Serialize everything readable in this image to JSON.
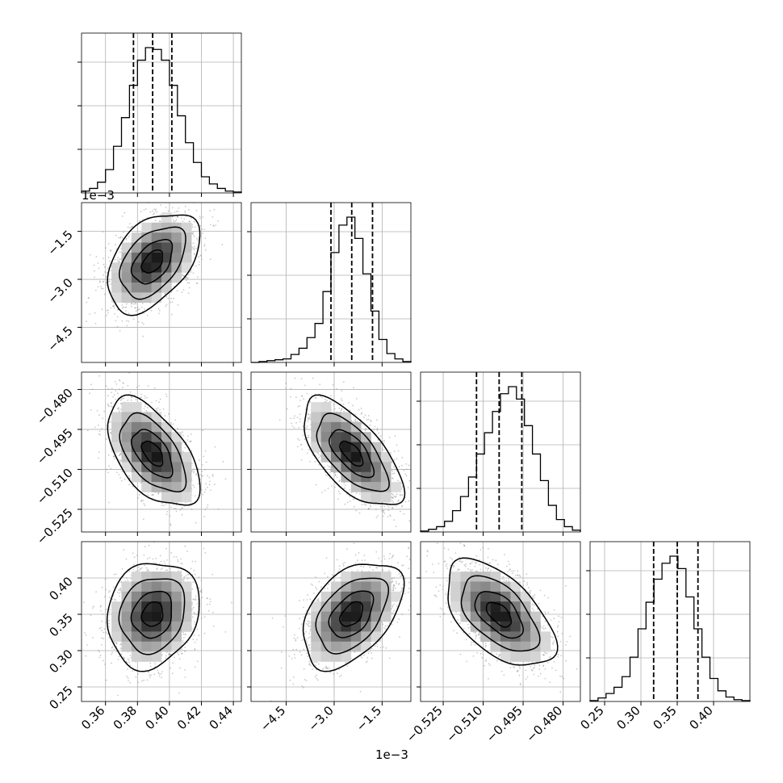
{
  "chart_data": {
    "type": "corner",
    "note_scale_y": "1e−3",
    "note_scale_x": "1e−3",
    "params": [
      {
        "range": [
          0.345,
          0.445
        ],
        "ticks": [
          0.36,
          0.38,
          0.4,
          0.42,
          0.44
        ],
        "tick_labels": [
          "0.36",
          "0.38",
          "0.40",
          "0.42",
          "0.44"
        ],
        "quantiles": [
          0.3775,
          0.3895,
          0.4015
        ],
        "hist_edges": [
          0.345,
          0.445
        ],
        "hist_values": [
          2,
          5,
          12,
          26,
          52,
          84,
          120,
          148,
          162,
          160,
          148,
          120,
          86,
          56,
          34,
          18,
          10,
          5,
          2,
          1
        ]
      },
      {
        "range": [
          -5.6,
          -0.6
        ],
        "ticks": [
          -4.5,
          -3.0,
          -1.5
        ],
        "tick_labels": [
          "−4.5",
          "−3.0",
          "−1.5"
        ],
        "quantiles": [
          -3.1,
          -2.45,
          -1.8
        ],
        "hist_edges": [
          -5.6,
          -0.6
        ],
        "hist_values": [
          0,
          1,
          2,
          3,
          4,
          9,
          16,
          28,
          44,
          80,
          124,
          155,
          164,
          140,
          100,
          58,
          26,
          10,
          4,
          1
        ]
      },
      {
        "range": [
          -0.5335,
          -0.4735
        ],
        "ticks": [
          -0.525,
          -0.51,
          -0.495,
          -0.48
        ],
        "tick_labels": [
          "−0.525",
          "−0.510",
          "−0.495",
          "−0.480"
        ],
        "quantiles": [
          -0.5125,
          -0.504,
          -0.4955
        ],
        "hist_edges": [
          -0.5335,
          -0.4735
        ],
        "hist_values": [
          1,
          3,
          6,
          12,
          24,
          40,
          62,
          88,
          112,
          136,
          156,
          164,
          150,
          120,
          88,
          58,
          30,
          14,
          6,
          2
        ]
      },
      {
        "range": [
          0.23,
          0.45
        ],
        "ticks": [
          0.25,
          0.3,
          0.35,
          0.4
        ],
        "tick_labels": [
          "0.25",
          "0.30",
          "0.35",
          "0.40"
        ],
        "quantiles": [
          0.3175,
          0.35,
          0.3785
        ],
        "hist_edges": [
          0.23,
          0.45
        ],
        "hist_values": [
          1,
          4,
          9,
          16,
          28,
          50,
          82,
          112,
          138,
          156,
          164,
          150,
          118,
          82,
          50,
          26,
          12,
          5,
          2,
          1
        ]
      }
    ],
    "pairs": [
      {
        "xi": 0,
        "yi": 1,
        "corr": 0.45
      },
      {
        "xi": 0,
        "yi": 2,
        "corr": -0.55
      },
      {
        "xi": 1,
        "yi": 2,
        "corr": -0.65
      },
      {
        "xi": 0,
        "yi": 3,
        "corr": 0.15
      },
      {
        "xi": 1,
        "yi": 3,
        "corr": 0.45
      },
      {
        "xi": 2,
        "yi": 3,
        "corr": -0.55
      }
    ]
  }
}
